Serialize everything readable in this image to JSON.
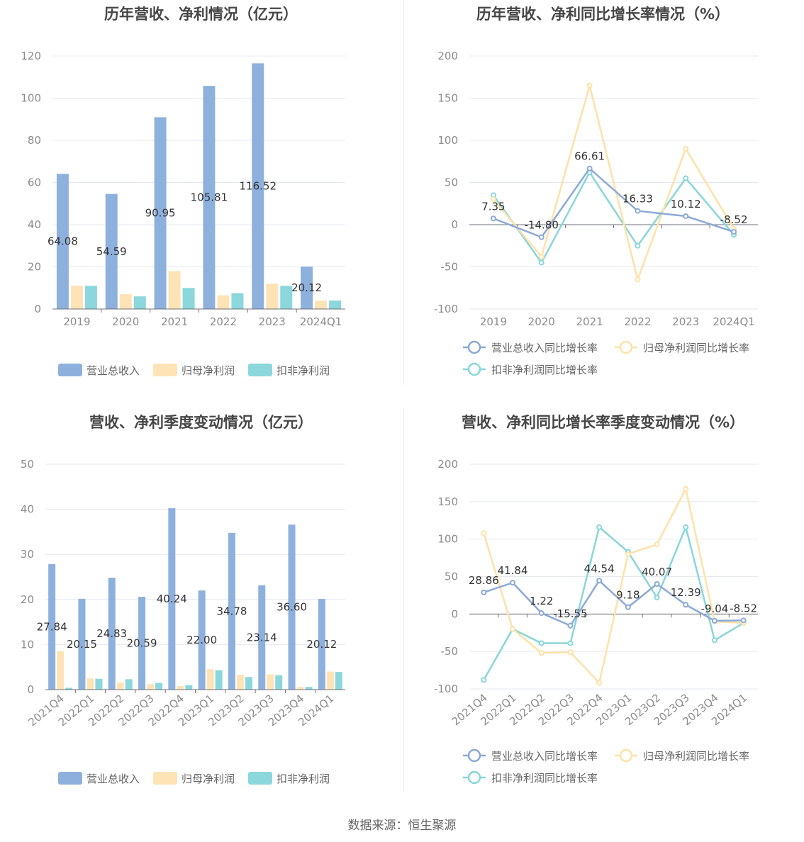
{
  "source_text": "数据来源：恒生聚源",
  "colors": {
    "revenue": "#8eb0dd",
    "net_profit": "#fde3b5",
    "deducted": "#8bd7db",
    "revenue_line": "#8ca9d6",
    "net_line": "#fde2a8",
    "deducted_line": "#89d6d9",
    "grid": "#e4e8f0",
    "axis": "#6e7079"
  },
  "chart_data": [
    {
      "id": "annual-bar",
      "type": "bar",
      "title": "历年营收、净利情况（亿元）",
      "categories": [
        "2019",
        "2020",
        "2021",
        "2022",
        "2023",
        "2024Q1"
      ],
      "series": [
        {
          "name": "营业总收入",
          "values": [
            64.08,
            54.59,
            90.95,
            105.81,
            116.52,
            20.12
          ],
          "labels": [
            "64.08",
            "54.59",
            "90.95",
            "105.81",
            "116.52",
            "20.12"
          ]
        },
        {
          "name": "归母净利润",
          "values": [
            11.0,
            7.0,
            18.0,
            6.5,
            12.0,
            4.0
          ]
        },
        {
          "name": "扣非净利润",
          "values": [
            11.0,
            6.0,
            10.0,
            7.5,
            11.0,
            4.0
          ]
        }
      ],
      "yticks": [
        "0",
        "20",
        "40",
        "60",
        "80",
        "100",
        "120"
      ],
      "ylim": [
        0,
        120
      ]
    },
    {
      "id": "annual-line",
      "type": "line",
      "title": "历年营收、净利同比增长率情况（%）",
      "categories": [
        "2019",
        "2020",
        "2021",
        "2022",
        "2023",
        "2024Q1"
      ],
      "series": [
        {
          "name": "营业总收入同比增长率",
          "values": [
            7.35,
            -14.8,
            66.61,
            16.33,
            10.12,
            -8.52
          ],
          "labels": [
            "7.35",
            "-14.80",
            "66.61",
            "16.33",
            "10.12",
            "-8.52"
          ]
        },
        {
          "name": "归母净利润同比增长率",
          "values": [
            30,
            -38,
            165,
            -65,
            90,
            -5
          ]
        },
        {
          "name": "扣非净利润同比增长率",
          "values": [
            35,
            -45,
            62,
            -25,
            55,
            -12
          ]
        }
      ],
      "yticks": [
        "-100",
        "-50",
        "0",
        "50",
        "100",
        "150",
        "200"
      ],
      "ylim": [
        -100,
        200
      ]
    },
    {
      "id": "quarter-bar",
      "type": "bar",
      "title": "营收、净利季度变动情况（亿元）",
      "categories": [
        "2021Q4",
        "2022Q1",
        "2022Q2",
        "2022Q3",
        "2022Q4",
        "2023Q1",
        "2023Q2",
        "2023Q3",
        "2023Q4",
        "2024Q1"
      ],
      "series": [
        {
          "name": "营业总收入",
          "values": [
            27.84,
            20.15,
            24.83,
            20.59,
            40.24,
            22.0,
            34.78,
            23.14,
            36.6,
            20.12
          ],
          "labels": [
            "27.84",
            "20.15",
            "24.83",
            "20.59",
            "40.24",
            "22.00",
            "34.78",
            "23.14",
            "36.60",
            "20.12"
          ]
        },
        {
          "name": "归母净利润",
          "values": [
            8.5,
            2.5,
            1.6,
            1.2,
            0.8,
            4.5,
            3.3,
            3.4,
            0.6,
            4.0
          ]
        },
        {
          "name": "扣非净利润",
          "values": [
            0.4,
            2.4,
            2.3,
            1.5,
            1.0,
            4.3,
            2.8,
            3.2,
            0.6,
            3.9
          ]
        }
      ],
      "yticks": [
        "0",
        "10",
        "20",
        "30",
        "40",
        "50"
      ],
      "ylim": [
        0,
        50
      ]
    },
    {
      "id": "quarter-line",
      "type": "line",
      "title": "营收、净利同比增长率季度变动情况（%）",
      "categories": [
        "2021Q4",
        "2022Q1",
        "2022Q2",
        "2022Q3",
        "2022Q4",
        "2023Q1",
        "2023Q2",
        "2023Q3",
        "2023Q4",
        "2024Q1"
      ],
      "series": [
        {
          "name": "营业总收入同比增长率",
          "values": [
            28.86,
            41.84,
            1.22,
            -15.55,
            44.54,
            9.18,
            40.07,
            12.39,
            -9.04,
            -8.52
          ],
          "labels": [
            "28.86",
            "41.84",
            "1.22",
            "-15.55",
            "44.54",
            "9.18",
            "40.07",
            "12.39",
            "-9.04",
            "-8.52"
          ]
        },
        {
          "name": "归母净利润同比增长率",
          "values": [
            108,
            -20,
            -52,
            -51,
            -92,
            80,
            93,
            167,
            -10,
            -12
          ]
        },
        {
          "name": "扣非净利润同比增长率",
          "values": [
            -88,
            -20,
            -39,
            -39,
            116,
            83,
            22,
            116,
            -35,
            -12
          ]
        }
      ],
      "yticks": [
        "-100",
        "-50",
        "0",
        "50",
        "100",
        "150",
        "200"
      ],
      "ylim": [
        -100,
        200
      ]
    }
  ]
}
